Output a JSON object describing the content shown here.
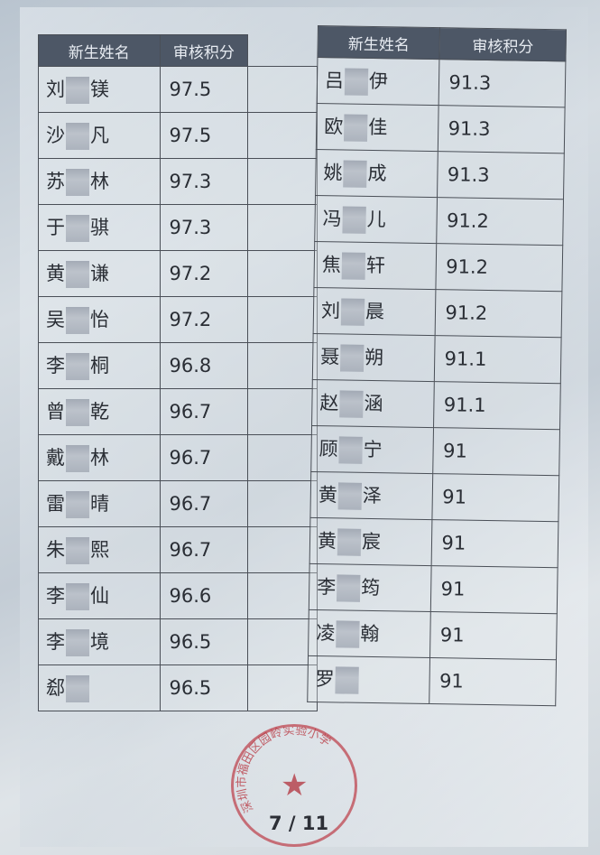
{
  "headers": {
    "name": "新生姓名",
    "score": "审核积分"
  },
  "left_rows": [
    {
      "first": "刘",
      "last": "镁",
      "score": "97.5"
    },
    {
      "first": "沙",
      "last": "凡",
      "score": "97.5"
    },
    {
      "first": "苏",
      "last": "林",
      "score": "97.3"
    },
    {
      "first": "于",
      "last": "骐",
      "score": "97.3"
    },
    {
      "first": "黄",
      "last": "谦",
      "score": "97.2"
    },
    {
      "first": "吴",
      "last": "怡",
      "score": "97.2"
    },
    {
      "first": "李",
      "last": "桐",
      "score": "96.8"
    },
    {
      "first": "曾",
      "last": "乾",
      "score": "96.7"
    },
    {
      "first": "戴",
      "last": "林",
      "score": "96.7"
    },
    {
      "first": "雷",
      "last": "晴",
      "score": "96.7"
    },
    {
      "first": "朱",
      "last": "熙",
      "score": "96.7"
    },
    {
      "first": "李",
      "last": "仙",
      "score": "96.6"
    },
    {
      "first": "李",
      "last": "境",
      "score": "96.5"
    },
    {
      "first": "郄",
      "last": "",
      "score": "96.5"
    }
  ],
  "right_rows": [
    {
      "first": "吕",
      "last": "伊",
      "score": "91.3"
    },
    {
      "first": "欧",
      "last": "佳",
      "score": "91.3"
    },
    {
      "first": "姚",
      "last": "成",
      "score": "91.3"
    },
    {
      "first": "冯",
      "last": "儿",
      "score": "91.2"
    },
    {
      "first": "焦",
      "last": "轩",
      "score": "91.2"
    },
    {
      "first": "刘",
      "last": "晨",
      "score": "91.2"
    },
    {
      "first": "聂",
      "last": "朔",
      "score": "91.1"
    },
    {
      "first": "赵",
      "last": "涵",
      "score": "91.1"
    },
    {
      "first": "顾",
      "last": "宁",
      "score": "91"
    },
    {
      "first": "黄",
      "last": "泽",
      "score": "91"
    },
    {
      "first": "黄",
      "last": "宸",
      "score": "91"
    },
    {
      "first": "李",
      "last": "筠",
      "score": "91"
    },
    {
      "first": "凌",
      "last": "翰",
      "score": "91"
    },
    {
      "first": "罗",
      "last": "",
      "score": "91"
    }
  ],
  "seal": {
    "text": "深圳市福田区园岭实验小学",
    "color": "#be4650"
  },
  "page_number": "7 / 11"
}
